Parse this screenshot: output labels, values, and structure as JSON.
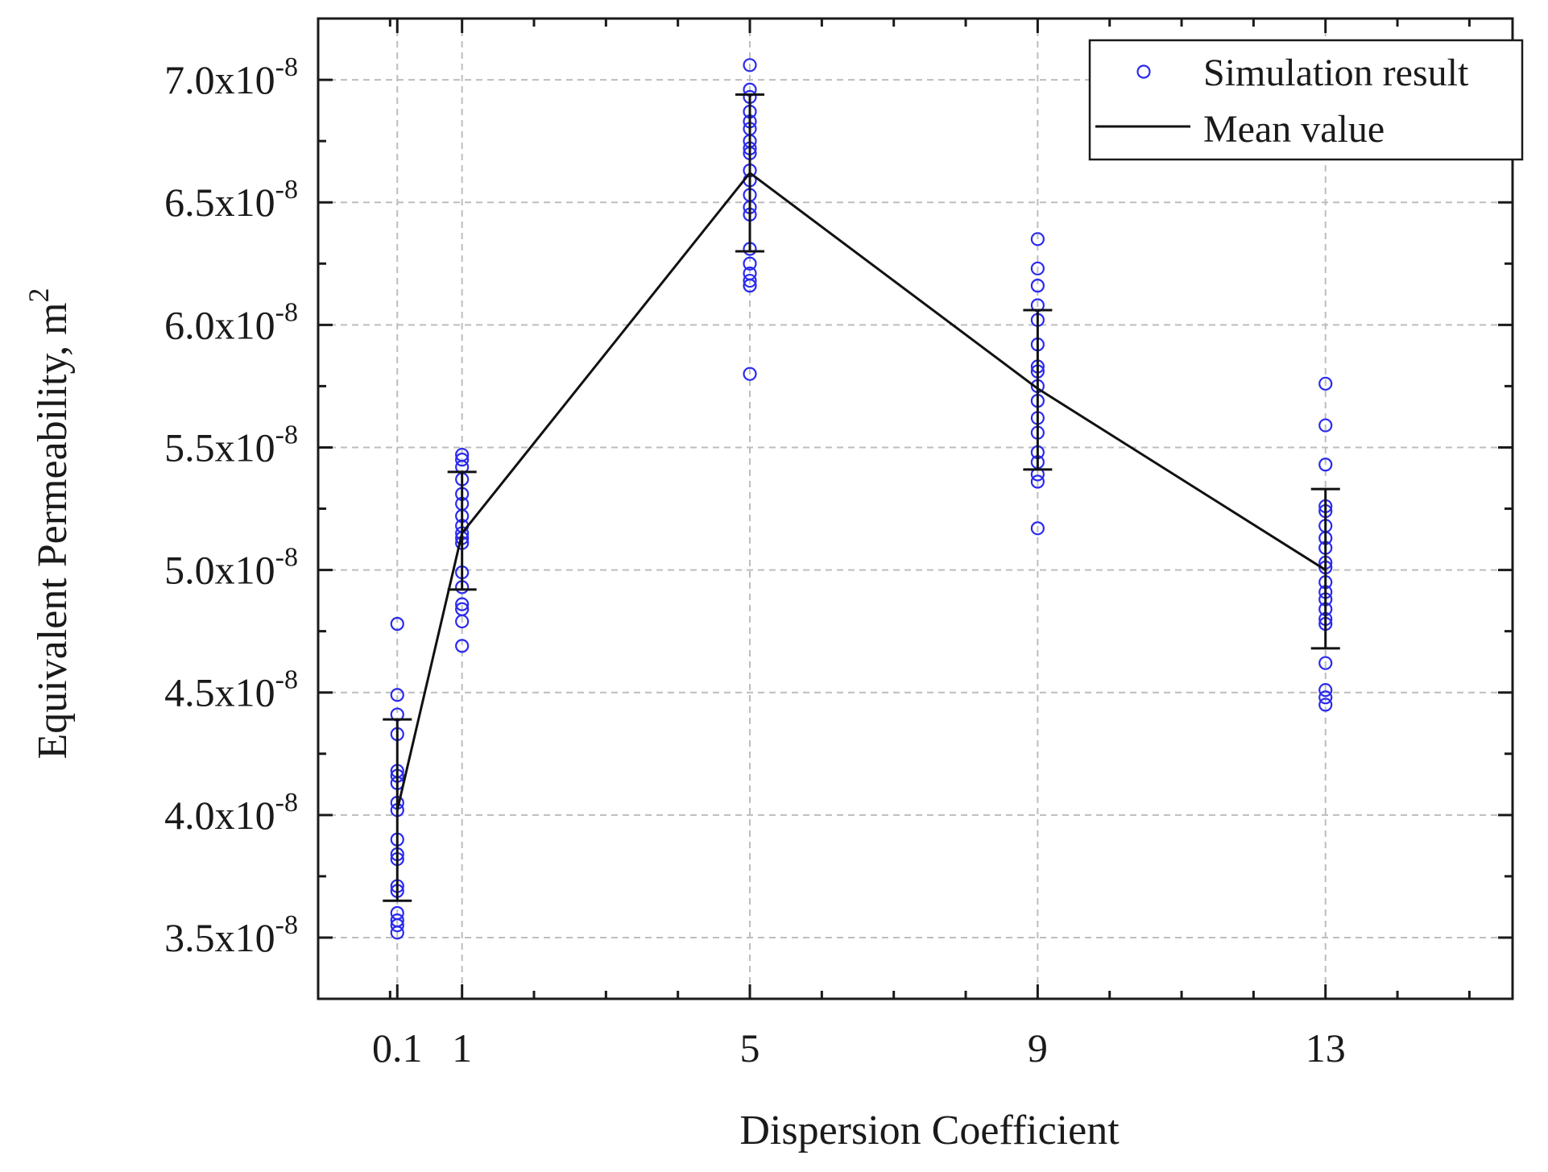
{
  "chart_data": {
    "type": "scatter",
    "title": "",
    "xlabel": "Dispersion Coefficient",
    "ylabel": "Equivalent Permeability, m",
    "ylabel_superscript": "2",
    "xlim": [
      -1.0,
      15.6
    ],
    "ylim": [
      3.25,
      7.25
    ],
    "y_exponent": "-8",
    "x_ticks": [
      {
        "value": 0.1,
        "label": "0.1"
      },
      {
        "value": 1,
        "label": "1"
      },
      {
        "value": 5,
        "label": "5"
      },
      {
        "value": 9,
        "label": "9"
      },
      {
        "value": 13,
        "label": "13"
      }
    ],
    "x_minor_ticks": [
      0,
      2,
      3,
      4,
      6,
      7,
      8,
      10,
      11,
      12,
      14,
      15
    ],
    "y_ticks": [
      {
        "value": 3.5,
        "label": "3.5x10"
      },
      {
        "value": 4.0,
        "label": "4.0x10"
      },
      {
        "value": 4.5,
        "label": "4.5x10"
      },
      {
        "value": 5.0,
        "label": "5.0x10"
      },
      {
        "value": 5.5,
        "label": "5.5x10"
      },
      {
        "value": 6.0,
        "label": "6.0x10"
      },
      {
        "value": 6.5,
        "label": "6.5x10"
      },
      {
        "value": 7.0,
        "label": "7.0x10"
      }
    ],
    "grid": true,
    "legend_position": "top-right",
    "legend": [
      {
        "name": "Simulation result",
        "marker": "circle",
        "color": "#2a2aee"
      },
      {
        "name": "Mean value",
        "marker": "line",
        "color": "#111111"
      }
    ],
    "series": [
      {
        "name": "Simulation result",
        "type": "scatter",
        "groups": [
          {
            "x": 0.1,
            "y": [
              4.78,
              4.49,
              4.41,
              4.33,
              4.18,
              4.16,
              4.13,
              4.05,
              4.02,
              3.9,
              3.84,
              3.82,
              3.71,
              3.69,
              3.6,
              3.57,
              3.55,
              3.52
            ]
          },
          {
            "x": 1,
            "y": [
              5.47,
              5.45,
              5.42,
              5.37,
              5.31,
              5.27,
              5.22,
              5.18,
              5.15,
              5.13,
              5.11,
              4.99,
              4.93,
              4.86,
              4.84,
              4.79,
              4.69
            ]
          },
          {
            "x": 5,
            "y": [
              7.06,
              6.96,
              6.93,
              6.87,
              6.83,
              6.8,
              6.75,
              6.72,
              6.7,
              6.63,
              6.59,
              6.53,
              6.48,
              6.45,
              6.31,
              6.25,
              6.21,
              6.18,
              6.16,
              5.8
            ]
          },
          {
            "x": 9,
            "y": [
              6.35,
              6.23,
              6.16,
              6.08,
              6.02,
              5.92,
              5.83,
              5.81,
              5.75,
              5.69,
              5.62,
              5.56,
              5.48,
              5.44,
              5.39,
              5.36,
              5.17
            ]
          },
          {
            "x": 13,
            "y": [
              5.76,
              5.59,
              5.43,
              5.26,
              5.24,
              5.18,
              5.13,
              5.09,
              5.03,
              5.01,
              4.95,
              4.91,
              4.88,
              4.84,
              4.8,
              4.78,
              4.62,
              4.51,
              4.48,
              4.45
            ]
          }
        ]
      },
      {
        "name": "Mean value",
        "type": "line",
        "x": [
          0.1,
          1,
          5,
          9,
          13
        ],
        "y": [
          4.02,
          5.15,
          6.62,
          5.74,
          5.0
        ],
        "error_bars": {
          "lower": [
            3.65,
            4.92,
            6.3,
            5.41,
            4.68
          ],
          "upper": [
            4.39,
            5.4,
            6.94,
            6.06,
            5.33
          ]
        }
      }
    ]
  }
}
